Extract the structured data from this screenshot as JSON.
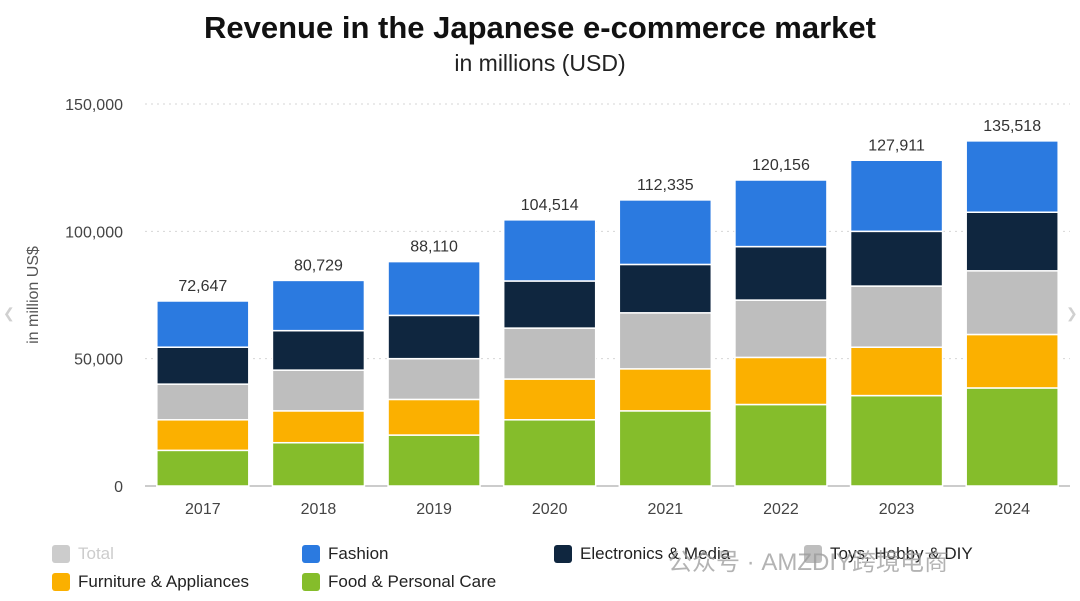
{
  "title": "Revenue in the Japanese e-commerce market",
  "subtitle": "in millions (USD)",
  "watermark": "公众号 · AMZDIY跨境电商",
  "colors": {
    "Total": "#cccccc",
    "Fashion": "#2b7ae0",
    "Electronics & Media": "#0f263f",
    "Toys, Hobby & DIY": "#bebebe",
    "Furniture & Appliances": "#fbb000",
    "Food & Personal Care": "#85bd2b"
  },
  "legend": [
    {
      "label": "Total",
      "key": "Total",
      "enabled": false
    },
    {
      "label": "Fashion",
      "key": "Fashion",
      "enabled": true
    },
    {
      "label": "Electronics & Media",
      "key": "Electronics & Media",
      "enabled": true
    },
    {
      "label": "Toys, Hobby & DIY",
      "key": "Toys, Hobby & DIY",
      "enabled": true
    },
    {
      "label": "Furniture & Appliances",
      "key": "Furniture & Appliances",
      "enabled": true
    },
    {
      "label": "Food & Personal Care",
      "key": "Food & Personal Care",
      "enabled": true
    }
  ],
  "chart_data": {
    "type": "bar",
    "stacked": true,
    "title": "Revenue in the Japanese e-commerce market",
    "subtitle": "in millions (USD)",
    "xlabel": "",
    "ylabel": "in million US$",
    "ylim": [
      0,
      150000
    ],
    "yticks": [
      0,
      50000,
      100000,
      150000
    ],
    "ytick_labels": [
      "0",
      "50,000",
      "100,000",
      "150,000"
    ],
    "grid": true,
    "categories": [
      "2017",
      "2018",
      "2019",
      "2020",
      "2021",
      "2022",
      "2023",
      "2024"
    ],
    "series": [
      {
        "name": "Food & Personal Care",
        "values": [
          14000,
          17000,
          20000,
          26000,
          29500,
          32000,
          35500,
          38500
        ]
      },
      {
        "name": "Furniture & Appliances",
        "values": [
          12000,
          12500,
          14000,
          16000,
          16500,
          18500,
          19000,
          21000
        ]
      },
      {
        "name": "Toys, Hobby & DIY",
        "values": [
          14000,
          16000,
          16000,
          20000,
          22000,
          22500,
          24000,
          25000
        ]
      },
      {
        "name": "Electronics & Media",
        "values": [
          14500,
          15500,
          17000,
          18500,
          19000,
          21000,
          21500,
          23000
        ]
      },
      {
        "name": "Fashion",
        "values": [
          18147,
          19729,
          21110,
          24014,
          25335,
          26156,
          27911,
          28018
        ]
      }
    ],
    "totals": [
      72647,
      80729,
      88110,
      104514,
      112335,
      120156,
      127911,
      135518
    ],
    "total_labels": [
      "72,647",
      "80,729",
      "88,110",
      "104,514",
      "112,335",
      "120,156",
      "127,911",
      "135,518"
    ]
  }
}
